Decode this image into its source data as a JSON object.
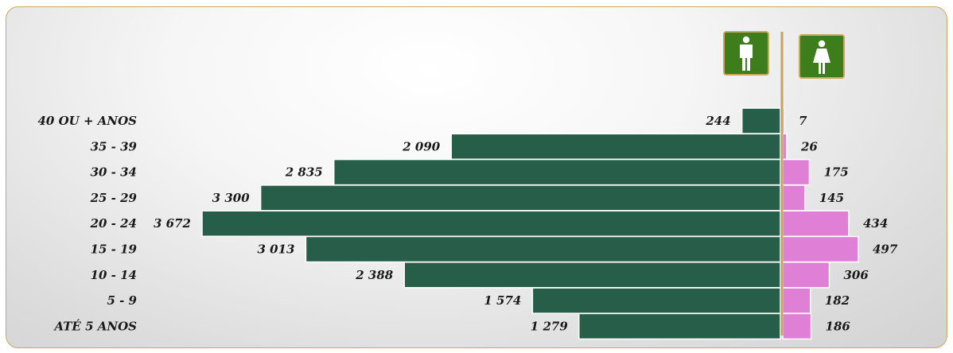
{
  "chart_data": {
    "type": "bar",
    "orientation": "horizontal-pyramid",
    "categories": [
      "40 OU + ANOS",
      "35 - 39",
      "30 - 34",
      "25 - 29",
      "20 - 24",
      "15 - 19",
      "10 - 14",
      "5 - 9",
      "ATÉ 5 ANOS"
    ],
    "series": [
      {
        "icon": "male-icon",
        "color": "#265e4a",
        "values": [
          244,
          2090,
          2835,
          3300,
          3672,
          3013,
          2388,
          1574,
          1279
        ],
        "labels": [
          "244",
          "2 090",
          "2 835",
          "3 300",
          "3 672",
          "3 013",
          "2 388",
          "1 574",
          "1 279"
        ]
      },
      {
        "icon": "female-icon",
        "color": "#e07fd6",
        "values": [
          7,
          26,
          175,
          145,
          434,
          497,
          306,
          182,
          186
        ],
        "labels": [
          "7",
          "26",
          "175",
          "145",
          "434",
          "497",
          "306",
          "182",
          "186"
        ]
      }
    ],
    "title": "",
    "xlabel": "",
    "ylabel": "",
    "grid": false,
    "legend": "icons-top-center"
  },
  "colors": {
    "axis_line": "#c8a264",
    "bar_border": "#ffffff",
    "icon_bg": "#3e7d1c"
  }
}
